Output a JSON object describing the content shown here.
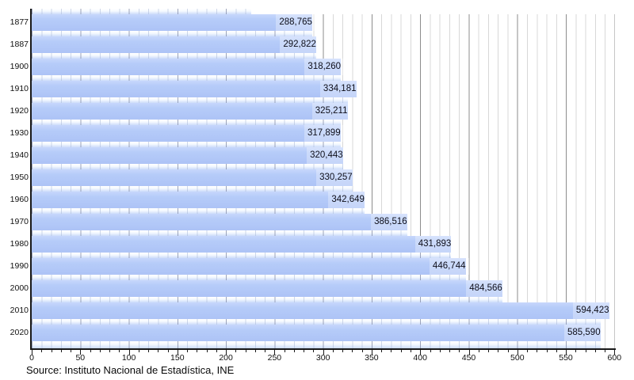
{
  "chart_data": {
    "type": "bar",
    "orientation": "horizontal",
    "title": "",
    "categories": [
      "1877",
      "1887",
      "1900",
      "1910",
      "1920",
      "1930",
      "1940",
      "1950",
      "1960",
      "1970",
      "1980",
      "1990",
      "2000",
      "2010",
      "2020"
    ],
    "values": [
      288765,
      292822,
      318260,
      334181,
      325211,
      317899,
      320443,
      330257,
      342649,
      386516,
      431893,
      446744,
      484566,
      594423,
      585590
    ],
    "value_labels": [
      "288,765",
      "292,822",
      "318,260",
      "334,181",
      "325,211",
      "317,899",
      "320,443",
      "330,257",
      "342,649",
      "386,516",
      "431,893",
      "446,744",
      "484,566",
      "594,423",
      "585,590"
    ],
    "x_axis": {
      "min": 0,
      "max": 600,
      "unit_divisor": 1000,
      "minor_step": 10,
      "major_step": 50,
      "tick_labels": [
        "0",
        "50",
        "100",
        "150",
        "200",
        "250",
        "300",
        "350",
        "400",
        "450",
        "500",
        "550",
        "600"
      ]
    },
    "grid": {
      "minor_color": "#d8d8d8",
      "major_color": "#8d8d8d"
    },
    "partial_top_bar_value_approx": 226000,
    "legend": null,
    "colors": {
      "bar": "#b3c9f8",
      "bar_label_box": "#ccd9f9",
      "axis": "#1a1a1a",
      "text": "#111111"
    }
  },
  "source_note": "Source: Instituto Nacional de Estadística, INE"
}
